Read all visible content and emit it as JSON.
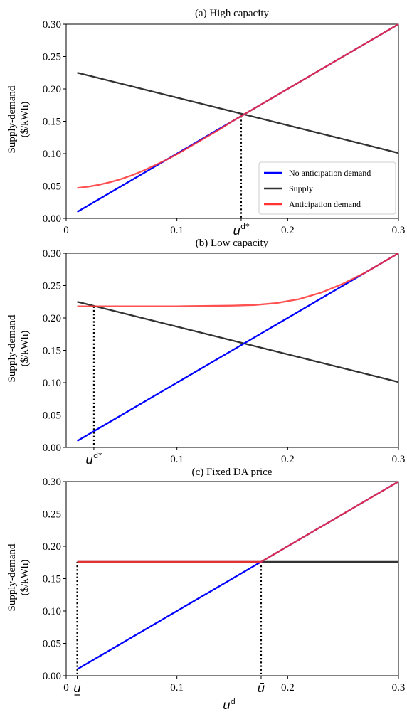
{
  "figure": {
    "ylabel_line1": "Supply-demand",
    "ylabel_line2": "($/kWh)",
    "xlabel": "u",
    "xlabel_sup": "d"
  },
  "colors": {
    "no_anticipation": "#0000ff",
    "supply": "#333333",
    "anticipation": "#ff3333",
    "overlap": "#b0124a"
  },
  "chart_data": [
    {
      "type": "line",
      "title": "(a) High capacity",
      "xlim": [
        0,
        0.3
      ],
      "ylim": [
        0,
        0.3
      ],
      "xticks": [
        {
          "v": 0,
          "label": "0"
        },
        {
          "v": 0.1,
          "label": "0.1"
        },
        {
          "v": 0.2,
          "label": "0.2"
        },
        {
          "v": 0.3,
          "label": "0.3"
        }
      ],
      "yticks": [
        "0.00",
        "0.05",
        "0.10",
        "0.15",
        "0.20",
        "0.25",
        "0.30"
      ],
      "special_ticks": [
        {
          "v": 0.158,
          "label": "u",
          "sup": "d*"
        }
      ],
      "vlines": [
        {
          "x": 0.158,
          "y": 0.158
        }
      ],
      "legend": {
        "position": "lower-right",
        "entries": [
          {
            "label": "No anticipation demand",
            "color": "#0000ff"
          },
          {
            "label": "Supply",
            "color": "#333333"
          },
          {
            "label": "Anticipation demand",
            "color": "#ff3333"
          }
        ]
      },
      "series": [
        {
          "name": "No anticipation demand",
          "color": "#0000ff",
          "x": [
            0.01,
            0.3
          ],
          "y": [
            0.01,
            0.3
          ]
        },
        {
          "name": "Supply",
          "color": "#333333",
          "x": [
            0.01,
            0.3
          ],
          "y": [
            0.225,
            0.101
          ]
        },
        {
          "name": "Anticipation demand",
          "color": "#ff3333",
          "x": [
            0.01,
            0.02,
            0.03,
            0.04,
            0.05,
            0.06,
            0.07,
            0.08,
            0.09,
            0.1,
            0.11,
            0.12,
            0.13,
            0.14,
            0.15,
            0.3
          ],
          "y": [
            0.047,
            0.049,
            0.052,
            0.056,
            0.061,
            0.067,
            0.074,
            0.082,
            0.09,
            0.099,
            0.109,
            0.119,
            0.129,
            0.139,
            0.15,
            0.3
          ]
        }
      ]
    },
    {
      "type": "line",
      "title": "(b) Low capacity",
      "xlim": [
        0,
        0.3
      ],
      "ylim": [
        0,
        0.3
      ],
      "xticks": [
        {
          "v": 0.1,
          "label": "0.1"
        },
        {
          "v": 0.2,
          "label": "0.2"
        },
        {
          "v": 0.3,
          "label": "0.3"
        }
      ],
      "yticks": [
        "0.00",
        "0.05",
        "0.10",
        "0.15",
        "0.20",
        "0.25",
        "0.30"
      ],
      "special_ticks": [
        {
          "v": 0.025,
          "label": "u",
          "sup": "d*"
        }
      ],
      "vlines": [
        {
          "x": 0.025,
          "y": 0.218
        }
      ],
      "series": [
        {
          "name": "No anticipation demand",
          "color": "#0000ff",
          "x": [
            0.01,
            0.3
          ],
          "y": [
            0.01,
            0.3
          ]
        },
        {
          "name": "Supply",
          "color": "#333333",
          "x": [
            0.01,
            0.3
          ],
          "y": [
            0.225,
            0.101
          ]
        },
        {
          "name": "Anticipation demand",
          "color": "#ff3333",
          "x": [
            0.01,
            0.05,
            0.1,
            0.15,
            0.17,
            0.19,
            0.21,
            0.23,
            0.25,
            0.27,
            0.29,
            0.3
          ],
          "y": [
            0.218,
            0.218,
            0.218,
            0.219,
            0.22,
            0.223,
            0.229,
            0.239,
            0.253,
            0.27,
            0.29,
            0.3
          ]
        }
      ]
    },
    {
      "type": "line",
      "title": "(c) Fixed DA price",
      "xlim": [
        0,
        0.3
      ],
      "ylim": [
        0,
        0.3
      ],
      "xticks": [
        {
          "v": 0,
          "label": "0"
        },
        {
          "v": 0.1,
          "label": "0.1"
        },
        {
          "v": 0.2,
          "label": "0.2"
        },
        {
          "v": 0.3,
          "label": "0.3"
        }
      ],
      "yticks": [
        "0.00",
        "0.05",
        "0.10",
        "0.15",
        "0.20",
        "0.25",
        "0.30"
      ],
      "special_ticks": [
        {
          "v": 0.01,
          "label": "u",
          "mark": "under"
        },
        {
          "v": 0.176,
          "label": "ū",
          "mark": "none"
        }
      ],
      "vlines": [
        {
          "x": 0.01,
          "y": 0.176
        },
        {
          "x": 0.176,
          "y": 0.176
        }
      ],
      "series": [
        {
          "name": "No anticipation demand",
          "color": "#0000ff",
          "x": [
            0.01,
            0.3
          ],
          "y": [
            0.01,
            0.3
          ]
        },
        {
          "name": "Supply",
          "color": "#333333",
          "x": [
            0.01,
            0.3
          ],
          "y": [
            0.176,
            0.176
          ]
        },
        {
          "name": "Anticipation demand",
          "color": "#ff3333",
          "x": [
            0.01,
            0.176,
            0.3
          ],
          "y": [
            0.176,
            0.176,
            0.3
          ]
        }
      ]
    }
  ]
}
